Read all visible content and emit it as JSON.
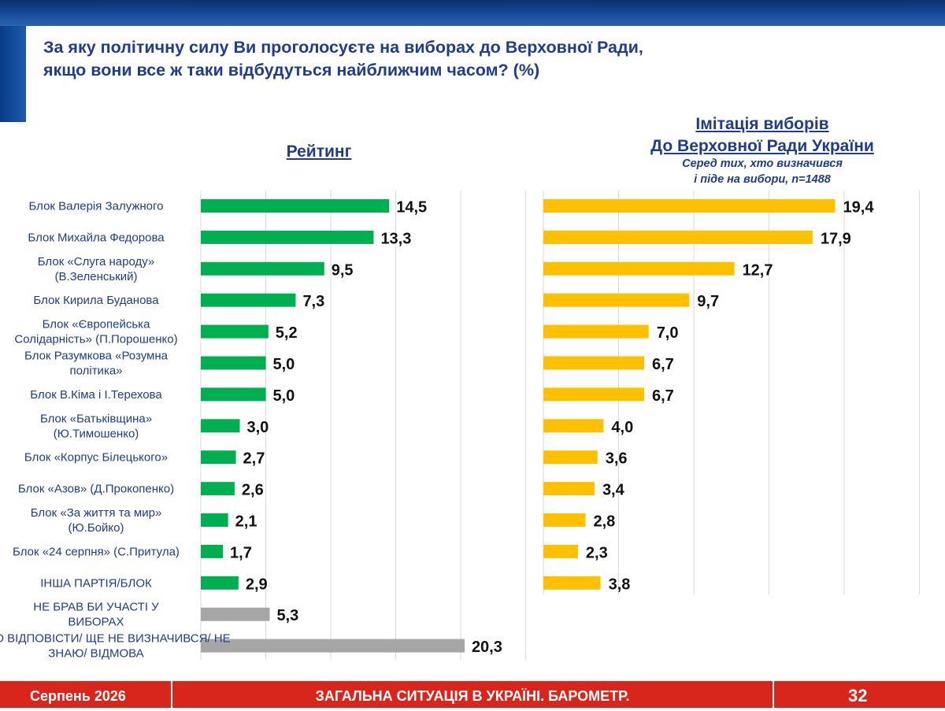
{
  "header": {
    "question_line1": "За яку політичну силу Ви проголосуєте на виборах до Верховної Ради,",
    "question_line2": "якщо вони все ж таки відбудуться найближчим часом? (%)"
  },
  "colors": {
    "rating_bar": "#00b050",
    "other_bar": "#a6a6a6",
    "simulation_bar": "#ffc000",
    "title": "#1f3d8c",
    "footer": "#d8261c"
  },
  "chart_data": [
    {
      "type": "bar",
      "orientation": "horizontal",
      "title": "Рейтинг",
      "categories": [
        [
          "Блок Валерія Залужного"
        ],
        [
          "Блок Михайла Федорова"
        ],
        [
          "Блок «Слуга народу»",
          "(В.Зеленський)"
        ],
        [
          "Блок Кирила Буданова"
        ],
        [
          "Блок «Європейська",
          "Солідарність» (П.Порошенко)"
        ],
        [
          "Блок Разумкова «Розумна",
          "політика»"
        ],
        [
          "Блок В.Кіма і І.Терехова"
        ],
        [
          "Блок «Батьківщина»",
          "(Ю.Тимошенко)"
        ],
        [
          "Блок «Корпус Білецького»"
        ],
        [
          "Блок «Азов» (Д.Прокопенко)"
        ],
        [
          "Блок «За життя та мир»",
          "(Ю.Бойко)"
        ],
        [
          "Блок «24 серпня» (С.Притула)"
        ],
        [
          "ІНША ПАРТІЯ/БЛОК"
        ],
        [
          "НЕ БРАВ БИ УЧАСТІ У",
          "ВИБОРАХ"
        ],
        [
          "ВАЖКО ВІДПОВІСТИ/ ЩЕ НЕ ВИЗНАЧИВСЯ/ НЕ",
          "ЗНАЮ/ ВІДМОВА"
        ]
      ],
      "values": [
        14.5,
        13.3,
        9.5,
        7.3,
        5.2,
        5.0,
        5.0,
        3.0,
        2.7,
        2.6,
        2.1,
        1.7,
        2.9,
        5.3,
        20.3
      ],
      "value_labels": [
        "14,5",
        "13,3",
        "9,5",
        "7,3",
        "5,2",
        "5,0",
        "5,0",
        "3,0",
        "2,7",
        "2,6",
        "2,1",
        "1,7",
        "2,9",
        "5,3",
        "20,3"
      ],
      "bar_colors": [
        "#00b050",
        "#00b050",
        "#00b050",
        "#00b050",
        "#00b050",
        "#00b050",
        "#00b050",
        "#00b050",
        "#00b050",
        "#00b050",
        "#00b050",
        "#00b050",
        "#00b050",
        "#a6a6a6",
        "#a6a6a6"
      ],
      "xlim": [
        0,
        25
      ],
      "grid": true
    },
    {
      "type": "bar",
      "orientation": "horizontal",
      "title_line1": "Імітація виборів",
      "title_line2": "До Верховної Ради України",
      "subtitle_line1": "Серед тих, хто визначився",
      "subtitle_line2": "і піде на вибори, n=1488",
      "values": [
        19.4,
        17.9,
        12.7,
        9.7,
        7.0,
        6.7,
        6.7,
        4.0,
        3.6,
        3.4,
        2.8,
        2.3,
        3.8
      ],
      "value_labels": [
        "19,4",
        "17,9",
        "12,7",
        "9,7",
        "7,0",
        "6,7",
        "6,7",
        "4,0",
        "3,6",
        "3,4",
        "2,8",
        "2,3",
        "3,8"
      ],
      "bar_color": "#ffc000",
      "xlim": [
        0,
        25
      ],
      "grid": true
    }
  ],
  "footer": {
    "date": "Серпень 2026",
    "title": "ЗАГАЛЬНА СИТУАЦІЯ В УКРАЇНІ. БАРОМЕТР.",
    "page_number": "32"
  }
}
